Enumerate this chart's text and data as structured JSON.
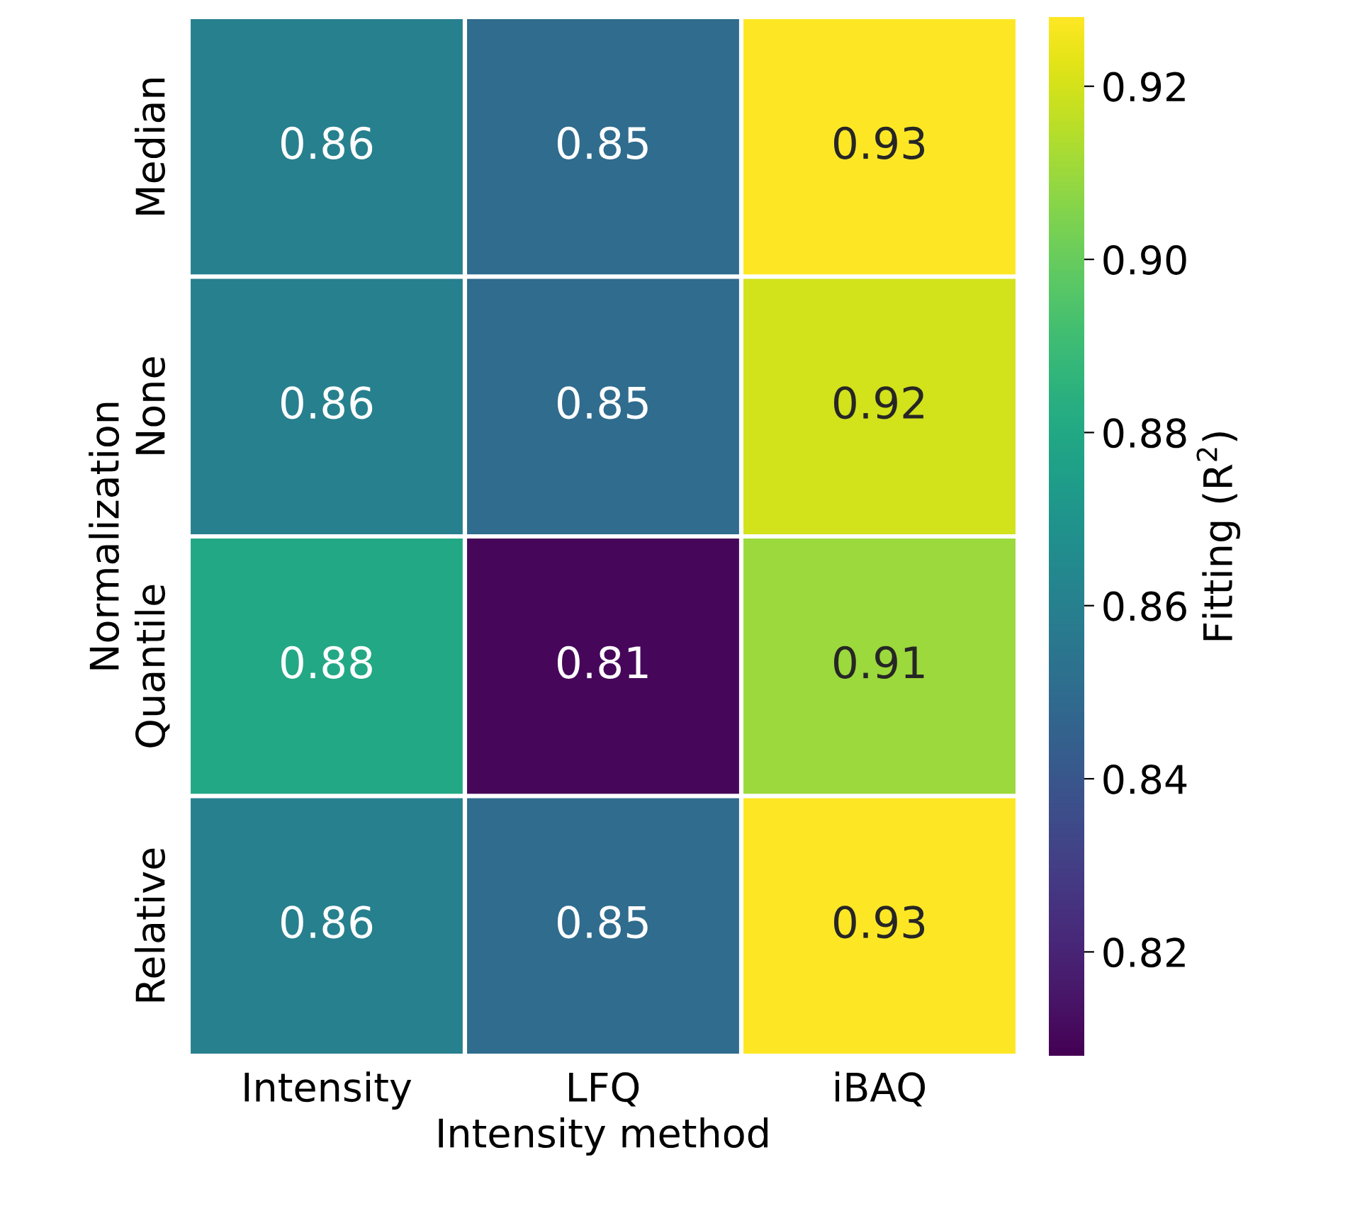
{
  "chart_data": {
    "type": "heatmap",
    "xlabel": "Intensity method",
    "ylabel": "Normalization",
    "clabel": "Fitting (R$^{2}$)",
    "categories": [
      "Intensity",
      "LFQ",
      "iBAQ"
    ],
    "y_categories": [
      "Median",
      "None",
      "Quantile",
      "Relative"
    ],
    "cells": [
      [
        0.86,
        0.85,
        0.93
      ],
      [
        0.86,
        0.85,
        0.92
      ],
      [
        0.88,
        0.81,
        0.91
      ],
      [
        0.86,
        0.85,
        0.93
      ]
    ],
    "clim": [
      0.808,
      0.928
    ],
    "cticks": [
      0.82,
      0.84,
      0.86,
      0.88,
      {
        "value": 0.9,
        "label": "0.90"
      },
      0.92
    ],
    "data_labels": true,
    "grid": false,
    "legend": false
  }
}
